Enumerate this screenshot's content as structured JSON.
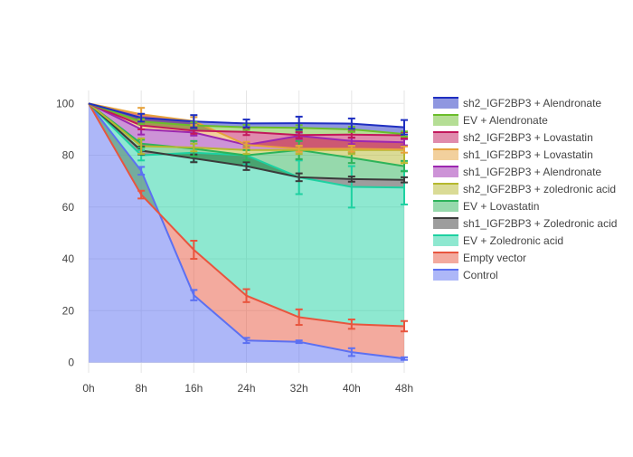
{
  "chart_data": {
    "type": "area",
    "title": "",
    "xlabel": "",
    "ylabel": "",
    "categories": [
      "0h",
      "8h",
      "16h",
      "24h",
      "32h",
      "40h",
      "48h"
    ],
    "ylim": [
      -4,
      105
    ],
    "y_ticks": [
      0,
      20,
      40,
      60,
      80,
      100
    ],
    "grid": true,
    "legend_position": "right",
    "series": [
      {
        "name": "sh2_IGF2BP3 + Alendronate",
        "color": "#1f2fc1",
        "values": [
          100,
          94.5,
          93.0,
          92.3,
          92.4,
          92.2,
          90.8
        ],
        "errors": [
          0,
          1.5,
          2.5,
          1.5,
          2.5,
          2.0,
          2.8
        ]
      },
      {
        "name": "EV + Alendronate",
        "color": "#6bbd2b",
        "values": [
          100,
          93.0,
          91.5,
          90.8,
          90.6,
          90.0,
          88.2
        ],
        "errors": [
          0,
          1.0,
          1.2,
          1.0,
          1.0,
          1.0,
          1.0
        ]
      },
      {
        "name": "sh2_IGF2BP3 + Lovastatin",
        "color": "#c2185b",
        "values": [
          100,
          91.5,
          89.5,
          89.0,
          87.8,
          88.0,
          87.7
        ],
        "errors": [
          0,
          1.5,
          1.2,
          1.2,
          1.2,
          1.2,
          1.2
        ]
      },
      {
        "name": "sh1_IGF2BP3 + Lovastatin",
        "color": "#e6a23c",
        "values": [
          100,
          95.8,
          93.2,
          84.0,
          82.5,
          82.5,
          82.2
        ],
        "errors": [
          0,
          2.5,
          1.5,
          1.2,
          1.2,
          1.2,
          1.2
        ]
      },
      {
        "name": "sh1_IGF2BP3 + Alendronate",
        "color": "#9c27b0",
        "values": [
          100,
          90.0,
          88.8,
          84.0,
          87.5,
          85.5,
          85.0
        ],
        "errors": [
          0,
          2.0,
          1.2,
          1.0,
          1.2,
          1.2,
          1.2
        ]
      },
      {
        "name": "sh2_IGF2BP3 + zoledronic acid",
        "color": "#b5b82e",
        "values": [
          100,
          83.5,
          83.0,
          82.0,
          82.0,
          82.0,
          82.0
        ],
        "errors": [
          0,
          3.0,
          1.5,
          1.5,
          1.5,
          1.5,
          5.0
        ]
      },
      {
        "name": "EV + Lovastatin",
        "color": "#2db35a",
        "values": [
          100,
          84.5,
          82.5,
          80.0,
          82.0,
          79.0,
          75.8
        ],
        "errors": [
          0,
          1.5,
          3.0,
          2.0,
          3.5,
          2.0,
          2.0
        ]
      },
      {
        "name": "sh1_IGF2BP3 + Zoledronic acid",
        "color": "#3b3b3b",
        "values": [
          100,
          81.8,
          78.8,
          75.8,
          71.5,
          70.8,
          70.5
        ],
        "errors": [
          0,
          1.5,
          1.5,
          1.5,
          1.5,
          1.0,
          1.0
        ]
      },
      {
        "name": "EV + Zoledronic acid",
        "color": "#1dd1a1",
        "values": [
          100,
          80.0,
          81.0,
          80.0,
          71.5,
          67.8,
          67.5
        ],
        "errors": [
          0,
          2.0,
          3.5,
          3.5,
          6.5,
          8.0,
          6.5
        ]
      },
      {
        "name": "Empty vector",
        "color": "#e8553e",
        "values": [
          100,
          64.8,
          43.5,
          25.8,
          17.5,
          14.8,
          14.0
        ],
        "errors": [
          0,
          1.5,
          3.5,
          2.5,
          3.0,
          1.8,
          2.0
        ]
      },
      {
        "name": "Control",
        "color": "#5c70f2",
        "values": [
          100,
          74.0,
          26.0,
          8.5,
          8.0,
          4.0,
          1.5
        ],
        "errors": [
          0,
          1.5,
          2.0,
          1.0,
          0.5,
          1.5,
          0.5
        ]
      }
    ]
  }
}
